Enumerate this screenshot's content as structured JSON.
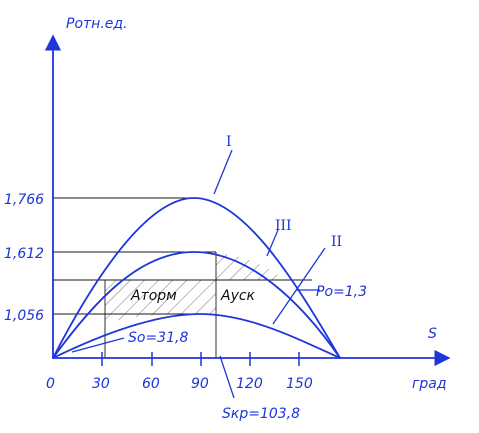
{
  "title_axis_y": "Pотн.ед.",
  "axis_x_label_s": "S",
  "axis_x_label_unit": "град",
  "y_ticks": [
    "1,766",
    "1,612",
    "1,056"
  ],
  "x_ticks": [
    "0",
    "30",
    "60",
    "90",
    "120",
    "150"
  ],
  "curve_labels": [
    "I",
    "III",
    "II"
  ],
  "area_labels": {
    "braking": "Aторм",
    "accel": "Aуск"
  },
  "param_labels": {
    "p0": "Po=1,3",
    "s0": "So=31,8",
    "skr": "Sкр=103,8"
  },
  "colors": {
    "accent": "#1d35d9",
    "dark": "#111111"
  }
}
